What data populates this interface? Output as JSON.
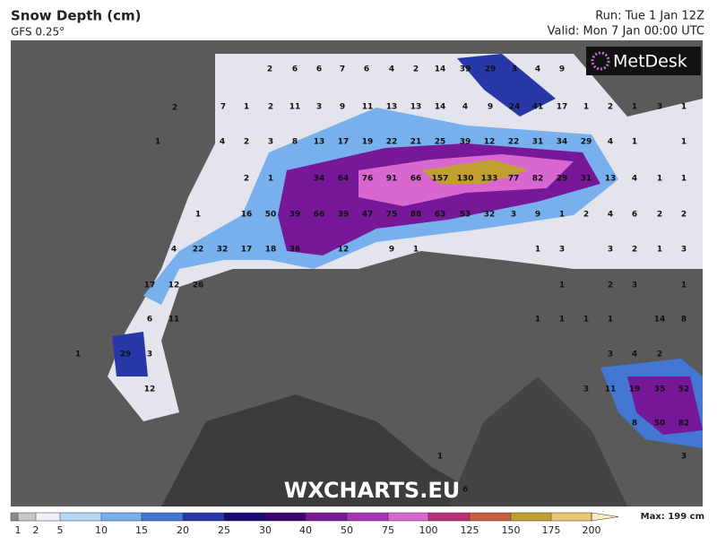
{
  "header": {
    "title": "Snow Depth (cm)",
    "model": "GFS 0.25°",
    "run": "Run: Tue 1 Jan 12Z",
    "valid": "Valid: Mon 7 Jan 00:00 UTC"
  },
  "logo": "MetDesk",
  "watermark": "WXCHARTS.EU",
  "map": {
    "labels": [
      2,
      6,
      6,
      7,
      6,
      4,
      2,
      14,
      39,
      29,
      3,
      4,
      9,
      2,
      7,
      1,
      2,
      11,
      3,
      9,
      11,
      13,
      13,
      14,
      4,
      9,
      24,
      41,
      17,
      1,
      2,
      1,
      3,
      1,
      1,
      4,
      2,
      3,
      8,
      13,
      17,
      19,
      22,
      21,
      25,
      39,
      12,
      22,
      31,
      34,
      29,
      4,
      1,
      1,
      2,
      1,
      34,
      64,
      76,
      91,
      66,
      157,
      130,
      133,
      77,
      82,
      29,
      31,
      13,
      4,
      1,
      1,
      1,
      16,
      50,
      39,
      66,
      39,
      47,
      75,
      88,
      63,
      53,
      32,
      3,
      9,
      1,
      2,
      4,
      6,
      2,
      2,
      4,
      22,
      32,
      17,
      18,
      36,
      12,
      9,
      1,
      1,
      3,
      3,
      2,
      1,
      3,
      17,
      12,
      26,
      1,
      2,
      3,
      1,
      6,
      11,
      1,
      1,
      1,
      1,
      14,
      8,
      1,
      29,
      3,
      3,
      4,
      2,
      12,
      3,
      11,
      19,
      35,
      52,
      8,
      50,
      82,
      1,
      3,
      6
    ]
  },
  "legend": {
    "ticks": [
      1,
      2,
      5,
      10,
      15,
      20,
      25,
      30,
      40,
      50,
      75,
      100,
      125,
      150,
      175,
      200
    ],
    "colors": [
      "#8c8c8c",
      "#c8c8c8",
      "#f0f0fa",
      "#b4d8f8",
      "#78b0ee",
      "#4476d4",
      "#2838a8",
      "#180a78",
      "#3c0070",
      "#761898",
      "#a832b8",
      "#d868d0",
      "#b83078",
      "#c86040",
      "#c0a030",
      "#e8c870",
      "#f8ecc0"
    ],
    "max": "Max: 199 cm"
  }
}
